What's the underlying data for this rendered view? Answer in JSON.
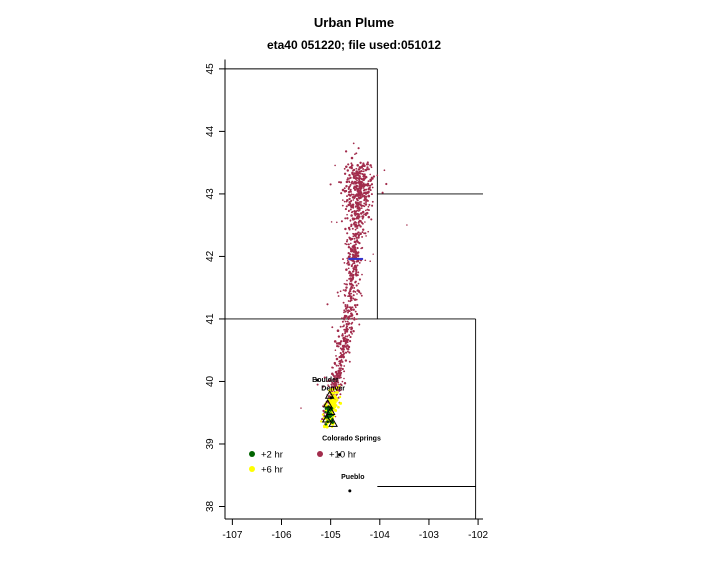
{
  "header": {
    "title": "Urban Plume",
    "subtitle": "eta40 051220; file used:051012"
  },
  "chart_data": {
    "type": "scatter",
    "title": "Urban Plume",
    "subtitle": "eta40 051220; file used:051012",
    "xlabel": "",
    "ylabel": "",
    "grid": false,
    "x_axis": {
      "range": [
        -107.15,
        -101.9
      ],
      "ticks": [
        -107,
        -106,
        -105,
        -104,
        -103,
        -102
      ]
    },
    "y_axis": {
      "range": [
        37.8,
        45.15
      ],
      "ticks": [
        38,
        39,
        40,
        41,
        42,
        43,
        44,
        45
      ]
    },
    "map": {
      "description": "State border segments (Wyoming / Nebraska / Colorado / Kansas), lon-lat pairs",
      "segments": [
        [
          [
            -107.15,
            45.0
          ],
          [
            -104.05,
            45.0
          ]
        ],
        [
          [
            -104.05,
            45.0
          ],
          [
            -104.05,
            41.0
          ]
        ],
        [
          [
            -104.05,
            43.0
          ],
          [
            -101.9,
            43.0
          ]
        ],
        [
          [
            -107.15,
            41.0
          ],
          [
            -102.05,
            41.0
          ]
        ],
        [
          [
            -102.05,
            41.0
          ],
          [
            -102.05,
            37.8
          ]
        ],
        [
          [
            -104.05,
            38.32
          ],
          [
            -102.05,
            38.32
          ]
        ]
      ]
    },
    "series": [
      {
        "name": "+10 hr",
        "color": "#A22C4C",
        "gen": {
          "kind": "plume",
          "path": [
            [
              -105.08,
              39.4
            ],
            [
              -105.05,
              39.58
            ],
            [
              -104.89,
              39.98
            ],
            [
              -104.73,
              40.51
            ],
            [
              -104.61,
              41.15
            ],
            [
              -104.53,
              41.79
            ],
            [
              -104.48,
              42.42
            ],
            [
              -104.44,
              42.98
            ],
            [
              -104.36,
              43.45
            ]
          ],
          "n": 680,
          "bias": 0.85,
          "sigma_lon": [
            0.045,
            0.12
          ],
          "sigma_lat": [
            0.04,
            0.07
          ],
          "core_n": 170,
          "core_sigma": [
            0.012,
            0.03
          ],
          "outlier_n": 60,
          "outlier_mult": 3,
          "blob": {
            "center": [
              -104.45,
              43.1
            ],
            "sigma": [
              0.16,
              0.27
            ],
            "n": 180
          }
        }
      },
      {
        "name": "+6 hr",
        "color": "#FFFF00",
        "gen": {
          "kind": "band",
          "path": [
            [
              -105.06,
              39.33
            ],
            [
              -104.93,
              39.82
            ]
          ],
          "n": 140,
          "sigma": [
            0.055,
            0.05
          ]
        }
      },
      {
        "name": "+2 hr",
        "color": "#006400",
        "gen": {
          "kind": "cluster",
          "center": [
            -105.04,
            39.46
          ],
          "sigma": [
            0.04,
            0.08
          ],
          "n": 45
        }
      }
    ],
    "receptor_triangles": [
      [
        -105.02,
        39.78
      ],
      [
        -105.06,
        39.64
      ],
      [
        -105.0,
        39.52
      ],
      [
        -105.08,
        39.4
      ],
      [
        -104.95,
        39.33
      ]
    ],
    "wind_marker": {
      "from": [
        -104.64,
        41.96
      ],
      "to": [
        -104.34,
        41.96
      ],
      "color": "#3333CC"
    },
    "cities": [
      {
        "name": "Boulder",
        "lon": -105.27,
        "lat": 40.02,
        "label_offset": [
          8,
          2
        ]
      },
      {
        "name": "Denver",
        "lon": -104.99,
        "lat": 39.74,
        "label_offset": [
          2,
          -7
        ]
      },
      {
        "name": "Colorado Springs",
        "lon": -104.82,
        "lat": 38.83,
        "label_offset": [
          12,
          -14
        ]
      },
      {
        "name": "Pueblo",
        "lon": -104.61,
        "lat": 38.25,
        "label_offset": [
          3,
          -12
        ]
      }
    ],
    "legend": {
      "items": [
        {
          "label": "+2 hr",
          "color": "#006400",
          "col": 0,
          "row": 0
        },
        {
          "label": "+6 hr",
          "color": "#FFFF00",
          "col": 0,
          "row": 1
        },
        {
          "label": "+10 hr",
          "color": "#A22C4C",
          "col": 1,
          "row": 0
        }
      ]
    }
  }
}
